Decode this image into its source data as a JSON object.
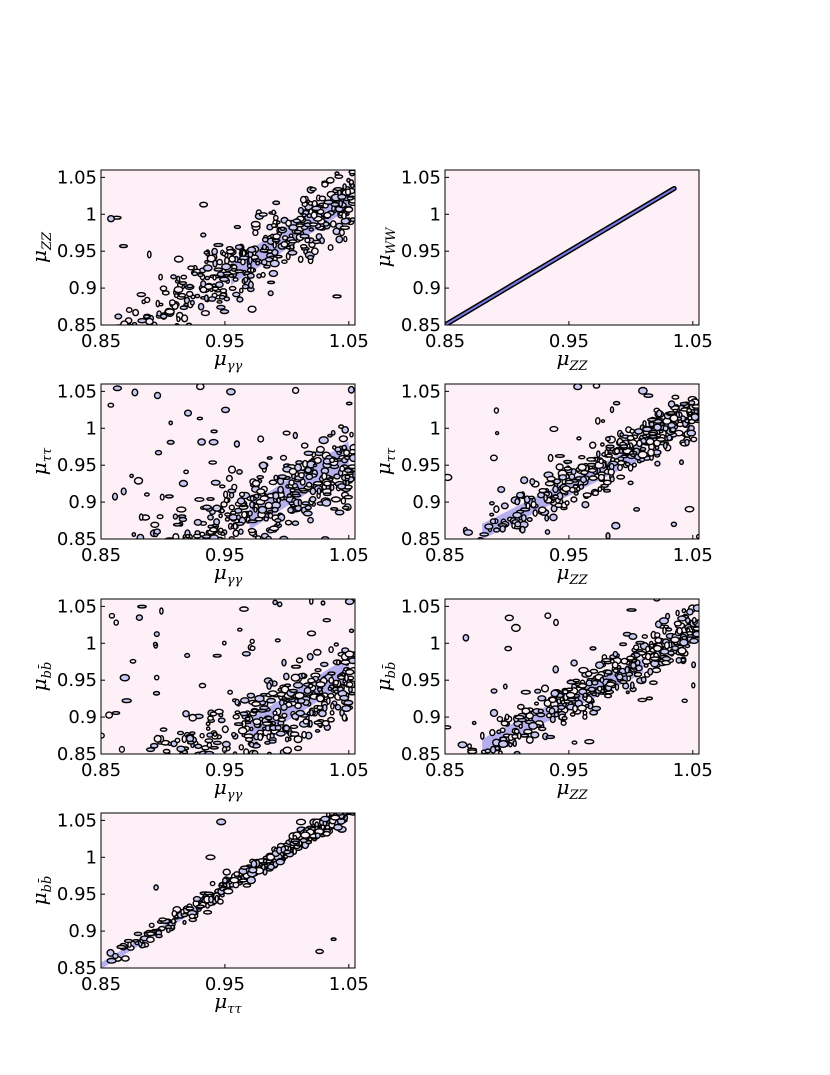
{
  "colors": {
    "background": "#fdf0f7",
    "band_fill": "#7a7ae6",
    "contour": "#000000",
    "contour_inner": "#c8c8f0"
  },
  "chart_data": [
    {
      "type": "scatter",
      "id": "zz-vs-gg",
      "xlabel": {
        "base": "μ",
        "sub": "γγ"
      },
      "ylabel": {
        "base": "μ",
        "sub": "ZZ"
      },
      "xlim": [
        0.85,
        1.055
      ],
      "ylim": [
        0.85,
        1.06
      ],
      "xticks": [
        "0.85",
        "0.95",
        "1.05"
      ],
      "yticks": [
        "1.05",
        "1",
        "0.95",
        "0.9",
        "0.85"
      ],
      "trend": {
        "slope": 1.0,
        "intercept": -0.03,
        "spread": 0.045,
        "xmin": 0.86
      },
      "core": [
        [
          0.955,
          0.92
        ],
        [
          1.052,
          1.025
        ]
      ],
      "outlier_fraction": 0.03
    },
    {
      "type": "scatter",
      "id": "ww-vs-zz",
      "xlabel": {
        "base": "μ",
        "sub": "ZZ"
      },
      "ylabel": {
        "base": "μ",
        "sub": "WW"
      },
      "xlim": [
        0.85,
        1.055
      ],
      "ylim": [
        0.85,
        1.06
      ],
      "xticks": [
        "0.85",
        "0.95",
        "1.05"
      ],
      "yticks": [
        "1.05",
        "1",
        "0.95",
        "0.9",
        "0.85"
      ],
      "trend": {
        "slope": 1.0,
        "intercept": 0.0,
        "spread": 0.002,
        "xmin": 0.85
      },
      "core": [
        [
          0.85,
          0.85
        ],
        [
          1.035,
          1.035
        ]
      ],
      "outlier_fraction": 0.0
    },
    {
      "type": "scatter",
      "id": "tautau-vs-gg",
      "xlabel": {
        "base": "μ",
        "sub": "γγ"
      },
      "ylabel": {
        "base": "μ",
        "sub": "ττ"
      },
      "xlim": [
        0.85,
        1.055
      ],
      "ylim": [
        0.85,
        1.06
      ],
      "xticks": [
        "0.85",
        "0.95",
        "1.05"
      ],
      "yticks": [
        "1.05",
        "1",
        "0.95",
        "0.9",
        "0.85"
      ],
      "trend": {
        "slope": 0.75,
        "intercept": 0.16,
        "spread": 0.05,
        "xmin": 0.87
      },
      "core": [
        [
          0.97,
          0.88
        ],
        [
          1.05,
          0.965
        ]
      ],
      "outlier_fraction": 0.12
    },
    {
      "type": "scatter",
      "id": "tautau-vs-zz",
      "xlabel": {
        "base": "μ",
        "sub": "ZZ"
      },
      "ylabel": {
        "base": "μ",
        "sub": "ττ"
      },
      "xlim": [
        0.85,
        1.055
      ],
      "ylim": [
        0.85,
        1.06
      ],
      "xticks": [
        "0.85",
        "0.95",
        "1.05"
      ],
      "yticks": [
        "1.05",
        "1",
        "0.95",
        "0.9",
        "0.85"
      ],
      "trend": {
        "slope": 0.95,
        "intercept": 0.02,
        "spread": 0.03,
        "xmin": 0.86
      },
      "core": [
        [
          0.88,
          0.86
        ],
        [
          1.01,
          0.97
        ]
      ],
      "outlier_fraction": 0.1
    },
    {
      "type": "scatter",
      "id": "bb-vs-gg",
      "xlabel": {
        "base": "μ",
        "sub": "γγ"
      },
      "ylabel": {
        "base": "μ",
        "sub": "bb̄"
      },
      "xlim": [
        0.85,
        1.055
      ],
      "ylim": [
        0.85,
        1.06
      ],
      "xticks": [
        "0.85",
        "0.95",
        "1.05"
      ],
      "yticks": [
        "1.05",
        "1",
        "0.95",
        "0.9",
        "0.85"
      ],
      "trend": {
        "slope": 0.75,
        "intercept": 0.16,
        "spread": 0.05,
        "xmin": 0.87
      },
      "core": [
        [
          0.97,
          0.88
        ],
        [
          1.05,
          0.965
        ]
      ],
      "outlier_fraction": 0.12
    },
    {
      "type": "scatter",
      "id": "bb-vs-zz",
      "xlabel": {
        "base": "μ",
        "sub": "ZZ"
      },
      "ylabel": {
        "base": "μ",
        "sub": "bb̄"
      },
      "xlim": [
        0.85,
        1.055
      ],
      "ylim": [
        0.85,
        1.06
      ],
      "xticks": [
        "0.85",
        "0.95",
        "1.05"
      ],
      "yticks": [
        "1.05",
        "1",
        "0.95",
        "0.9",
        "0.85"
      ],
      "trend": {
        "slope": 0.95,
        "intercept": 0.02,
        "spread": 0.03,
        "xmin": 0.86
      },
      "core": [
        [
          0.88,
          0.86
        ],
        [
          1.01,
          0.97
        ]
      ],
      "outlier_fraction": 0.1
    },
    {
      "type": "scatter",
      "id": "bb-vs-tautau",
      "xlabel": {
        "base": "μ",
        "sub": "ττ"
      },
      "ylabel": {
        "base": "μ",
        "sub": "bb̄"
      },
      "xlim": [
        0.85,
        1.055
      ],
      "ylim": [
        0.85,
        1.06
      ],
      "xticks": [
        "0.85",
        "0.95",
        "1.05"
      ],
      "yticks": [
        "1.05",
        "1",
        "0.95",
        "0.9",
        "0.85"
      ],
      "trend": {
        "slope": 1.05,
        "intercept": -0.04,
        "spread": 0.012,
        "xmin": 0.85
      },
      "core": [
        [
          0.85,
          0.853
        ],
        [
          0.96,
          0.965
        ]
      ],
      "outlier_fraction": 0.04
    }
  ]
}
